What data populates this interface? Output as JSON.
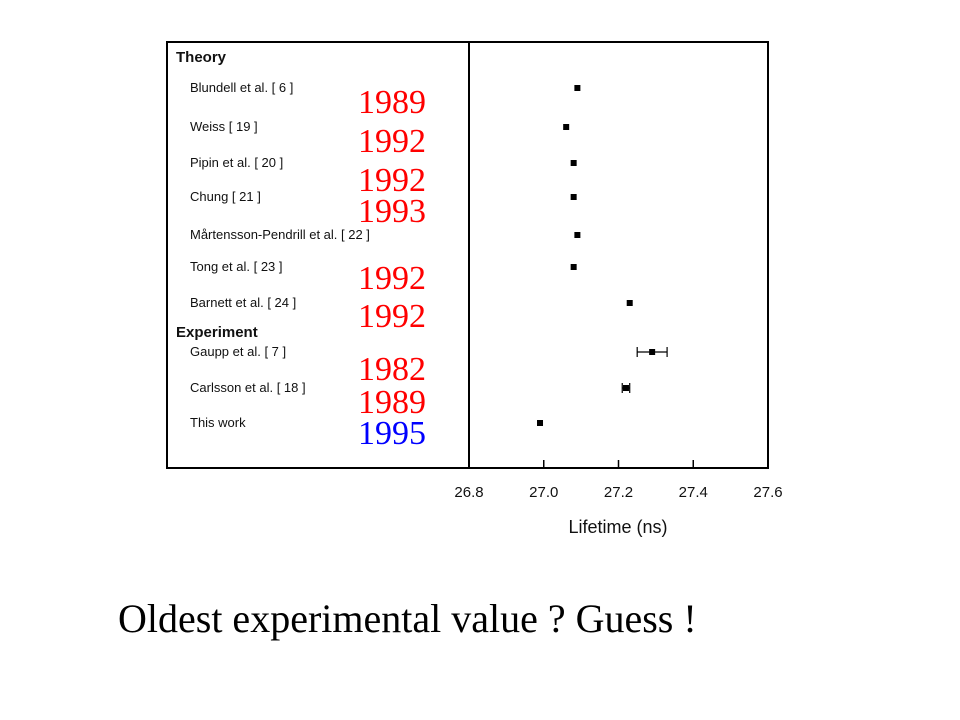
{
  "caption": "Oldest experimental value ? Guess !",
  "chart_data": {
    "type": "scatter",
    "xlabel": "Lifetime (ns)",
    "xlim": [
      26.8,
      27.6
    ],
    "xticks": [
      "26.8",
      "27.0",
      "27.2",
      "27.4",
      "27.6"
    ],
    "sections": [
      {
        "title": "Theory",
        "entries": [
          {
            "label": "Blundell et al. [ 6 ]",
            "value": 27.09,
            "year": "1989"
          },
          {
            "label": "Weiss [ 19 ]",
            "value": 27.06,
            "year": "1992"
          },
          {
            "label": "Pipin et al. [ 20 ]",
            "value": 27.08,
            "year": "1992"
          },
          {
            "label": "Chung [ 21 ]",
            "value": 27.08,
            "year": "1993"
          },
          {
            "label": "Mårtensson-Pendrill et al. [ 22 ]",
            "value": 27.09,
            "year": ""
          },
          {
            "label": "Tong et al. [ 23 ]",
            "value": 27.08,
            "year": "1992"
          },
          {
            "label": "Barnett et al. [ 24 ]",
            "value": 27.23,
            "year": "1992"
          }
        ]
      },
      {
        "title": "Experiment",
        "entries": [
          {
            "label": "Gaupp et al. [ 7 ]",
            "value": 27.29,
            "error": 0.04,
            "year": "1982"
          },
          {
            "label": "Carlsson et al. [ 18 ]",
            "value": 27.22,
            "error": 0.01,
            "year": "1989"
          },
          {
            "label": "This work",
            "value": 26.99,
            "year": "1995"
          }
        ]
      }
    ],
    "colors": {
      "year": "#ff0000",
      "highlight_year": "#0000ff"
    }
  }
}
